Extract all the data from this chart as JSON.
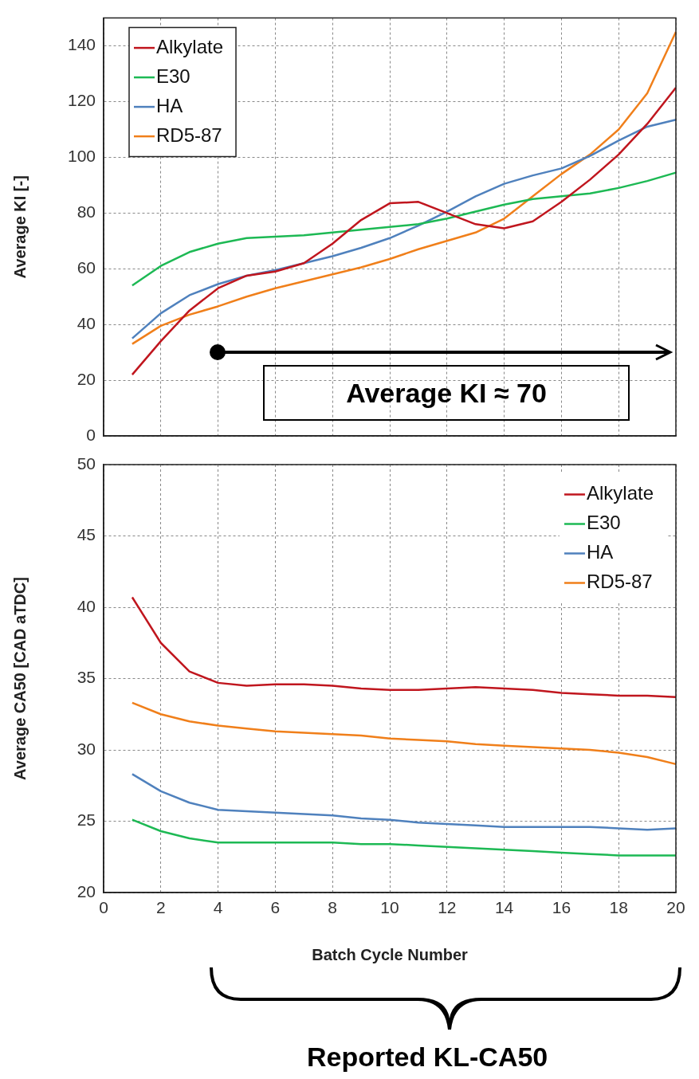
{
  "chart_data": [
    {
      "type": "line",
      "ylabel": "Average KI [-]",
      "x": [
        1,
        2,
        3,
        4,
        5,
        6,
        7,
        8,
        9,
        10,
        11,
        12,
        13,
        14,
        15,
        16,
        17,
        18,
        19,
        20
      ],
      "xlim": [
        0,
        20
      ],
      "xticks": [
        0,
        2,
        4,
        6,
        8,
        10,
        12,
        14,
        16,
        18,
        20
      ],
      "ylim": [
        0,
        150
      ],
      "yticks": [
        0,
        20,
        40,
        60,
        80,
        100,
        120,
        140
      ],
      "tick_labels": "y",
      "grid": true,
      "legend": "top left",
      "marker": "none",
      "line_style": "solid",
      "annotations": [
        "Average KI ≈ 70"
      ],
      "series": [
        {
          "name": "Alkylate",
          "color": "#c0161e",
          "values": [
            22,
            34,
            45,
            53,
            57.5,
            59,
            62,
            69,
            77.5,
            83.5,
            84,
            80,
            76,
            74.5,
            77,
            84,
            92,
            101,
            112,
            125
          ]
        },
        {
          "name": "E30",
          "color": "#1db954",
          "values": [
            54,
            61,
            66,
            69,
            71,
            71.5,
            72,
            73,
            74,
            75,
            76,
            78,
            80.5,
            83,
            85,
            86,
            87,
            89,
            91.5,
            94.5
          ]
        },
        {
          "name": "HA",
          "color": "#4f81bd",
          "values": [
            35,
            44,
            50.5,
            54.5,
            57.5,
            59.5,
            62,
            64.5,
            67.5,
            71,
            75.5,
            80.5,
            86,
            90.5,
            93.5,
            96,
            100.5,
            106,
            111,
            113.5
          ]
        },
        {
          "name": "RD5-87",
          "color": "#f07f1a",
          "values": [
            33,
            39.5,
            43.5,
            46.5,
            50,
            53,
            55.5,
            58,
            60.5,
            63.5,
            67,
            70,
            73,
            78,
            86,
            94,
            101,
            110,
            123,
            145
          ]
        }
      ]
    },
    {
      "type": "line",
      "xlabel": "Batch Cycle Number",
      "ylabel": "Average CA50 [CAD aTDC]",
      "x": [
        1,
        2,
        3,
        4,
        5,
        6,
        7,
        8,
        9,
        10,
        11,
        12,
        13,
        14,
        15,
        16,
        17,
        18,
        19,
        20
      ],
      "xlim": [
        0,
        20
      ],
      "xticks": [
        0,
        2,
        4,
        6,
        8,
        10,
        12,
        14,
        16,
        18,
        20
      ],
      "ylim": [
        20,
        50
      ],
      "yticks": [
        20,
        25,
        30,
        35,
        40,
        45,
        50
      ],
      "grid": true,
      "legend": "top right",
      "marker": "none",
      "line_style": "solid",
      "annotations": [
        "Reported KL-CA50"
      ],
      "series": [
        {
          "name": "Alkylate",
          "color": "#c0161e",
          "values": [
            40.7,
            37.5,
            35.5,
            34.7,
            34.5,
            34.6,
            34.6,
            34.5,
            34.3,
            34.2,
            34.2,
            34.3,
            34.4,
            34.3,
            34.2,
            34.0,
            33.9,
            33.8,
            33.8,
            33.7
          ]
        },
        {
          "name": "E30",
          "color": "#1db954",
          "values": [
            25.1,
            24.3,
            23.8,
            23.5,
            23.5,
            23.5,
            23.5,
            23.5,
            23.4,
            23.4,
            23.3,
            23.2,
            23.1,
            23.0,
            22.9,
            22.8,
            22.7,
            22.6,
            22.6,
            22.6
          ]
        },
        {
          "name": "HA",
          "color": "#4f81bd",
          "values": [
            28.3,
            27.1,
            26.3,
            25.8,
            25.7,
            25.6,
            25.5,
            25.4,
            25.2,
            25.1,
            24.9,
            24.8,
            24.7,
            24.6,
            24.6,
            24.6,
            24.6,
            24.5,
            24.4,
            24.5
          ]
        },
        {
          "name": "RD5-87",
          "color": "#f07f1a",
          "values": [
            33.3,
            32.5,
            32.0,
            31.7,
            31.5,
            31.3,
            31.2,
            31.1,
            31.0,
            30.8,
            30.7,
            30.6,
            30.4,
            30.3,
            30.2,
            30.1,
            30.0,
            29.8,
            29.5,
            29.0
          ]
        }
      ]
    }
  ]
}
